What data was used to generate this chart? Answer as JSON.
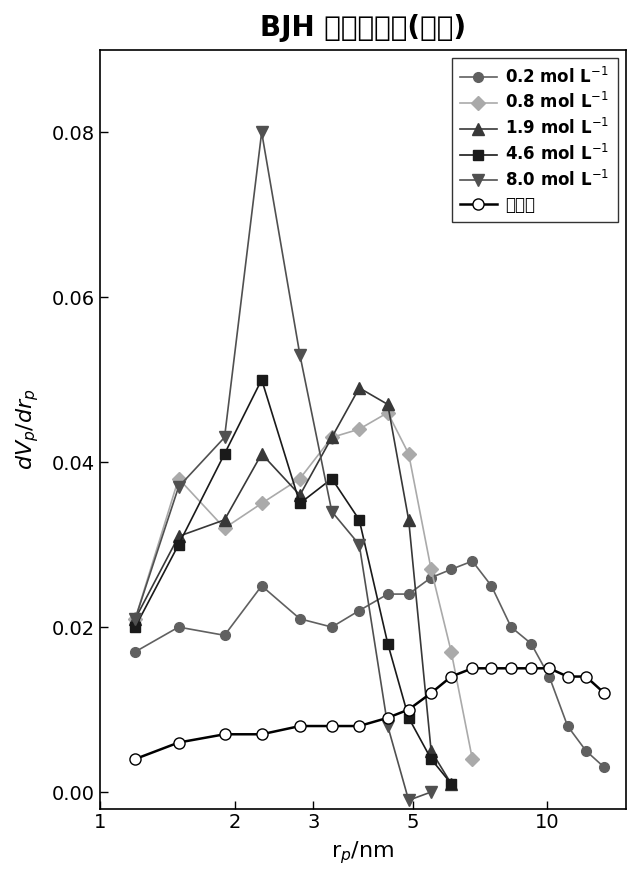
{
  "title": "BJH 細孔径分布(脱離)",
  "xlabel": "r$_p$/nm",
  "ylabel": "$dV_p/dr_p$",
  "xlim": [
    1,
    15
  ],
  "ylim": [
    -0.002,
    0.09
  ],
  "yticks": [
    0,
    0.02,
    0.04,
    0.06,
    0.08
  ],
  "xticks": [
    1,
    2,
    3,
    5,
    10
  ],
  "xtick_labels": [
    "1",
    "2",
    "3",
    "5",
    "10"
  ],
  "series": [
    {
      "label": "0.2 mol L$^{-1}$",
      "color": "#606060",
      "marker": "o",
      "markersize": 7,
      "markerfacecolor": "#606060",
      "linewidth": 1.2,
      "x": [
        1.2,
        1.5,
        1.9,
        2.3,
        2.8,
        3.3,
        3.8,
        4.4,
        4.9,
        5.5,
        6.1,
        6.8,
        7.5,
        8.3,
        9.2,
        10.1,
        11.1,
        12.2,
        13.4
      ],
      "y": [
        0.017,
        0.02,
        0.019,
        0.025,
        0.021,
        0.02,
        0.022,
        0.024,
        0.024,
        0.026,
        0.027,
        0.028,
        0.025,
        0.02,
        0.018,
        0.014,
        0.008,
        0.005,
        0.003
      ]
    },
    {
      "label": "0.8 mol L$^{-1}$",
      "color": "#aaaaaa",
      "marker": "D",
      "markersize": 7,
      "markerfacecolor": "#aaaaaa",
      "linewidth": 1.2,
      "x": [
        1.2,
        1.5,
        1.9,
        2.3,
        2.8,
        3.3,
        3.8,
        4.4,
        4.9,
        5.5,
        6.1,
        6.8
      ],
      "y": [
        0.021,
        0.038,
        0.032,
        0.035,
        0.038,
        0.043,
        0.044,
        0.046,
        0.041,
        0.027,
        0.017,
        0.004
      ]
    },
    {
      "label": "1.9 mol L$^{-1}$",
      "color": "#383838",
      "marker": "^",
      "markersize": 8,
      "markerfacecolor": "#383838",
      "linewidth": 1.2,
      "x": [
        1.2,
        1.5,
        1.9,
        2.3,
        2.8,
        3.3,
        3.8,
        4.4,
        4.9,
        5.5,
        6.1
      ],
      "y": [
        0.021,
        0.031,
        0.033,
        0.041,
        0.036,
        0.043,
        0.049,
        0.047,
        0.033,
        0.005,
        0.001
      ]
    },
    {
      "label": "4.6 mol L$^{-1}$",
      "color": "#1a1a1a",
      "marker": "s",
      "markersize": 7,
      "markerfacecolor": "#1a1a1a",
      "linewidth": 1.2,
      "x": [
        1.2,
        1.5,
        1.9,
        2.3,
        2.8,
        3.3,
        3.8,
        4.4,
        4.9,
        5.5,
        6.1
      ],
      "y": [
        0.02,
        0.03,
        0.041,
        0.05,
        0.035,
        0.038,
        0.033,
        0.018,
        0.009,
        0.004,
        0.001
      ]
    },
    {
      "label": "8.0 mol L$^{-1}$",
      "color": "#505050",
      "marker": "v",
      "markersize": 8,
      "markerfacecolor": "#505050",
      "linewidth": 1.2,
      "x": [
        1.2,
        1.5,
        1.9,
        2.3,
        2.8,
        3.3,
        3.8,
        4.4,
        4.9,
        5.5
      ],
      "y": [
        0.021,
        0.037,
        0.043,
        0.08,
        0.053,
        0.034,
        0.03,
        0.008,
        -0.001,
        0.0
      ]
    },
    {
      "label": "未処理",
      "color": "#000000",
      "marker": "o",
      "markersize": 8,
      "markerfacecolor": "white",
      "linewidth": 1.8,
      "x": [
        1.2,
        1.5,
        1.9,
        2.3,
        2.8,
        3.3,
        3.8,
        4.4,
        4.9,
        5.5,
        6.1,
        6.8,
        7.5,
        8.3,
        9.2,
        10.1,
        11.1,
        12.2,
        13.4
      ],
      "y": [
        0.004,
        0.006,
        0.007,
        0.007,
        0.008,
        0.008,
        0.008,
        0.009,
        0.01,
        0.012,
        0.014,
        0.015,
        0.015,
        0.015,
        0.015,
        0.015,
        0.014,
        0.014,
        0.012
      ]
    }
  ]
}
